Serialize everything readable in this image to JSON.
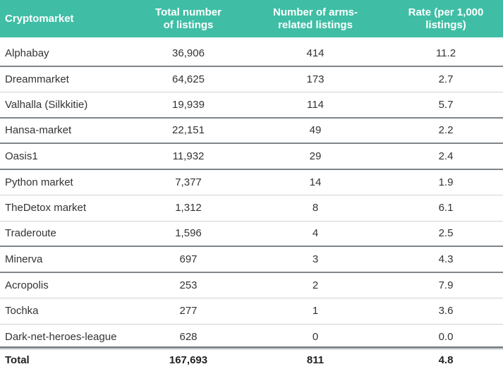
{
  "table": {
    "headers": [
      {
        "line1": "Cryptomarket",
        "line2": ""
      },
      {
        "line1": "Total number",
        "line2": "of listings"
      },
      {
        "line1": "Number of arms-",
        "line2": "related listings"
      },
      {
        "line1": "Rate (per 1,000",
        "line2": "listings)"
      }
    ],
    "rows": [
      {
        "market": "Alphabay",
        "total": "36,906",
        "arms": "414",
        "rate": "11.2"
      },
      {
        "market": "Dreammarket",
        "total": "64,625",
        "arms": "173",
        "rate": "2.7"
      },
      {
        "market": "Valhalla (Silkkitie)",
        "total": "19,939",
        "arms": "114",
        "rate": "5.7"
      },
      {
        "market": "Hansa-market",
        "total": "22,151",
        "arms": "49",
        "rate": "2.2"
      },
      {
        "market": "Oasis1",
        "total": "11,932",
        "arms": "29",
        "rate": "2.4"
      },
      {
        "market": "Python market",
        "total": "7,377",
        "arms": "14",
        "rate": "1.9"
      },
      {
        "market": "TheDetox market",
        "total": "1,312",
        "arms": "8",
        "rate": "6.1"
      },
      {
        "market": "Traderoute",
        "total": "1,596",
        "arms": "4",
        "rate": "2.5"
      },
      {
        "market": "Minerva",
        "total": "697",
        "arms": "3",
        "rate": "4.3"
      },
      {
        "market": "Acropolis",
        "total": "253",
        "arms": "2",
        "rate": "7.9"
      },
      {
        "market": "Tochka",
        "total": "277",
        "arms": "1",
        "rate": "3.6"
      },
      {
        "market": "Dark-net-heroes-league",
        "total": "628",
        "arms": "0",
        "rate": "0.0"
      }
    ],
    "total": {
      "market": "Total",
      "total": "167,693",
      "arms": "811",
      "rate": "4.8"
    }
  },
  "colors": {
    "header_bg": "#3fbea5",
    "header_text": "#ffffff",
    "body_text": "#333333"
  }
}
